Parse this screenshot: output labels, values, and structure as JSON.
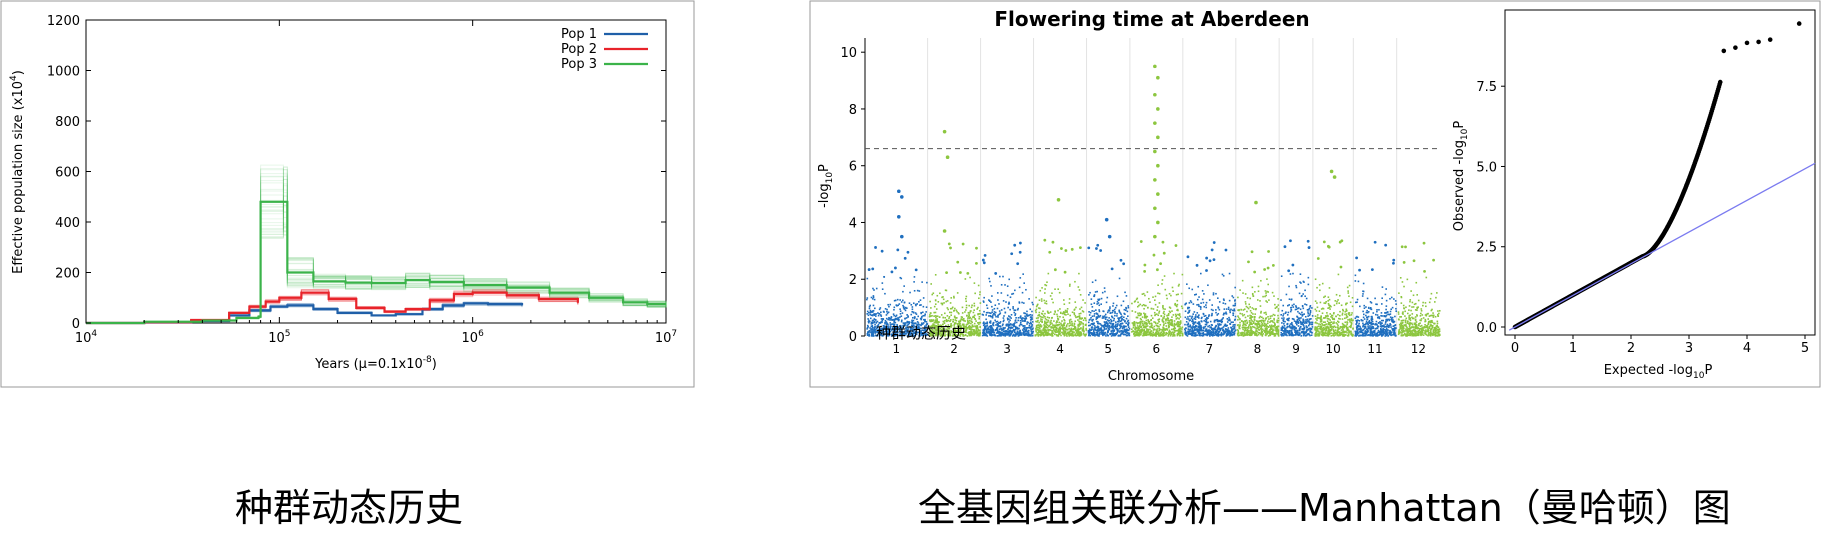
{
  "captions": {
    "left": "种群动态历史",
    "right": "全基因组关联分析——Manhattan（曼哈顿）图"
  },
  "chart_data": [
    {
      "type": "line",
      "ylabel": "Effective population size (x10",
      "ylabel_exp": "4",
      "ylabel_end": ")",
      "xlabel": "Years (μ=0.1x10",
      "xlabel_exp": "-8",
      "xlabel_end": ")",
      "xscale": "log",
      "xlim": [
        10000,
        10000000
      ],
      "ylim": [
        0,
        1200
      ],
      "xticks": [
        {
          "v": 10000,
          "base": "10",
          "exp": "4"
        },
        {
          "v": 100000,
          "base": "10",
          "exp": "5"
        },
        {
          "v": 1000000,
          "base": "10",
          "exp": "6"
        },
        {
          "v": 10000000,
          "base": "10",
          "exp": "7"
        }
      ],
      "yticks": [
        0,
        200,
        400,
        600,
        800,
        1000,
        1200
      ],
      "legend_position": "top-right",
      "series": [
        {
          "name": "Pop 1",
          "color": "#1f5fa8",
          "x": [
            10000,
            20000,
            35000,
            55000,
            70000,
            90000,
            110000,
            150000,
            200000,
            300000,
            400000,
            550000,
            700000,
            900000,
            1200000,
            1800000
          ],
          "y": [
            0,
            2,
            8,
            30,
            50,
            65,
            70,
            55,
            40,
            30,
            35,
            55,
            70,
            78,
            75,
            70
          ]
        },
        {
          "name": "Pop 2",
          "color": "#e8232a",
          "x": [
            10000,
            20000,
            35000,
            55000,
            70000,
            85000,
            100000,
            130000,
            180000,
            250000,
            350000,
            450000,
            600000,
            800000,
            1000000,
            1500000,
            2200000,
            3500000
          ],
          "y": [
            0,
            3,
            12,
            40,
            65,
            85,
            100,
            120,
            95,
            60,
            45,
            55,
            90,
            115,
            120,
            110,
            95,
            80
          ]
        },
        {
          "name": "Pop 3",
          "color": "#3bb34a",
          "x": [
            10000,
            20000,
            40000,
            60000,
            78000,
            80000,
            105000,
            110000,
            150000,
            220000,
            300000,
            450000,
            600000,
            900000,
            1500000,
            2500000,
            4000000,
            6000000,
            8000000,
            10000000
          ],
          "y": [
            0,
            5,
            10,
            20,
            25,
            480,
            480,
            200,
            165,
            160,
            158,
            170,
            162,
            150,
            140,
            120,
            100,
            82,
            75,
            75
          ]
        }
      ]
    },
    {
      "type": "scatter",
      "title": "Flowering time at Aberdeen",
      "xlabel": "Chromosome",
      "ylabel": "-log",
      "ylabel_sub": "10",
      "ylabel_end": "P",
      "ylim": [
        0,
        10.5
      ],
      "yticks": [
        0,
        2,
        4,
        6,
        8,
        10
      ],
      "threshold": 6.6,
      "categories": [
        "1",
        "2",
        "3",
        "4",
        "5",
        "6",
        "7",
        "8",
        "9",
        "10",
        "11",
        "12"
      ],
      "colors": [
        "#1f6fbf",
        "#8cc63f"
      ],
      "overlay_text": "种群动态历史",
      "peaks": [
        {
          "chromosome": "1",
          "values": [
            5.1,
            4.9,
            4.2,
            3.5
          ]
        },
        {
          "chromosome": "2",
          "values": [
            7.2,
            6.3,
            3.7
          ]
        },
        {
          "chromosome": "4",
          "values": [
            4.8
          ]
        },
        {
          "chromosome": "5",
          "values": [
            4.1,
            3.5
          ]
        },
        {
          "chromosome": "6",
          "values": [
            9.5,
            9.1,
            8.5,
            8.0,
            7.5,
            7.0,
            6.5,
            6.0,
            5.5,
            5.0,
            4.5,
            4.0,
            3.5
          ]
        },
        {
          "chromosome": "8",
          "values": [
            4.7
          ]
        },
        {
          "chromosome": "10",
          "values": [
            5.8,
            5.6
          ]
        }
      ]
    },
    {
      "type": "scatter",
      "xlabel": "Expected -log",
      "xlabel_sub": "10",
      "xlabel_end": "P",
      "ylabel": "Observed -log",
      "ylabel_sub": "10",
      "ylabel_end": "P",
      "xlim": [
        0,
        5
      ],
      "ylim": [
        0,
        9.5
      ],
      "xticks": [
        0,
        1,
        2,
        3,
        4,
        5
      ],
      "yticks": [
        0.0,
        2.5,
        5.0,
        7.5
      ],
      "line_color": "#7b7bf0",
      "tail_points": [
        [
          3.6,
          8.6
        ],
        [
          3.8,
          8.7
        ],
        [
          4.0,
          8.85
        ],
        [
          4.2,
          8.88
        ],
        [
          4.4,
          8.95
        ],
        [
          4.9,
          9.45
        ]
      ]
    }
  ]
}
